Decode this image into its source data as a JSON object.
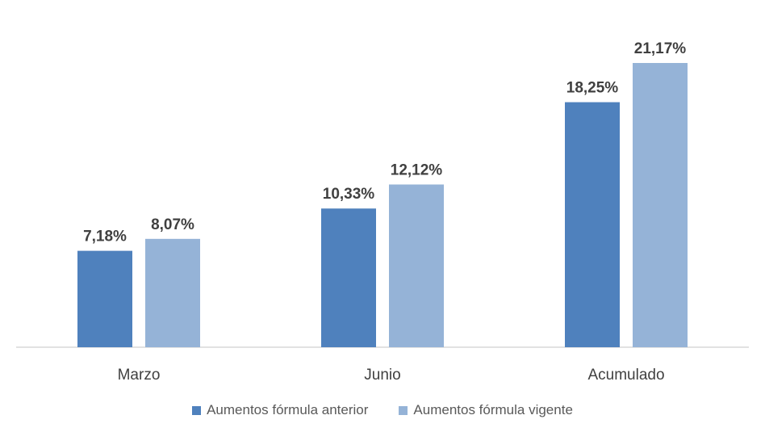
{
  "chart_data": {
    "type": "bar",
    "categories": [
      "Marzo",
      "Junio",
      "Acumulado"
    ],
    "series": [
      {
        "name": "Aumentos fórmula anterior",
        "values": [
          7.18,
          10.33,
          18.25
        ],
        "labels": [
          "7,18%",
          "10,33%",
          "18,25%"
        ],
        "color": "#4f81bd"
      },
      {
        "name": "Aumentos fórmula vigente",
        "values": [
          8.07,
          12.12,
          21.17
        ],
        "labels": [
          "8,07%",
          "12,12%",
          "21,17%"
        ],
        "color": "#95b3d7"
      }
    ],
    "ylim": [
      0,
      21.17
    ],
    "grid": false,
    "legend_position": "bottom"
  }
}
